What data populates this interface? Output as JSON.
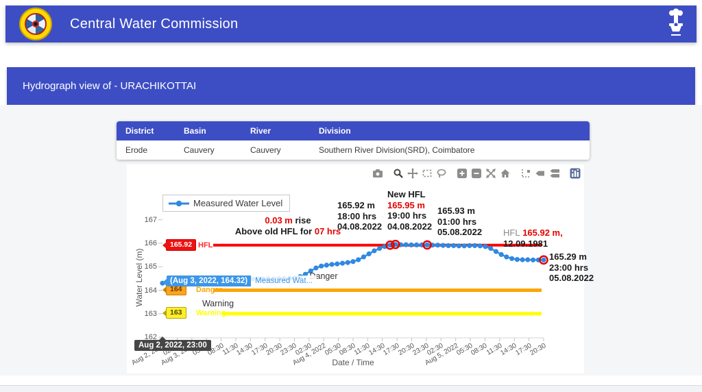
{
  "header": {
    "title": "Central Water Commission"
  },
  "page": {
    "title": "Hydrograph view of - URACHIKOTTAI"
  },
  "station_table": {
    "headers": [
      "District",
      "Basin",
      "River",
      "Division"
    ],
    "rows": [
      [
        "Erode",
        "Cauvery",
        "Cauvery",
        "Southern River Division(SRD), Coimbatore"
      ]
    ]
  },
  "modebar_icons": [
    "download-plot",
    "zoom",
    "pan",
    "box-select",
    "lasso-select",
    "zoom-in",
    "zoom-out",
    "autoscale",
    "reset-axes",
    "toggle-spike-lines",
    "show-closest-on-hover",
    "compare-data-on-hover",
    "plotly-logo"
  ],
  "chart_data": {
    "type": "line",
    "title": "",
    "xlabel": "Date / Time",
    "ylabel": "Water Level (m)",
    "ylim": [
      162,
      167
    ],
    "grid": false,
    "legend_position": "top-left",
    "legend": [
      "Measured Water Level"
    ],
    "yticks": [
      167,
      166,
      165,
      164,
      163,
      162
    ],
    "xticks": [
      "Aug 2, 2022",
      "02:30",
      "Aug 3, 2022",
      "05:30",
      "08:30",
      "11:30",
      "14:30",
      "17:30",
      "20:30",
      "23:30",
      "02:30",
      "Aug 4, 2022",
      "05:30",
      "08:30",
      "11:30",
      "14:30",
      "17:30",
      "20:30",
      "23:30",
      "02:30",
      "Aug 5, 2022",
      "05:30",
      "08:30",
      "11:30",
      "14:30",
      "17:30",
      "20:30"
    ],
    "x_start": "Aug 2, 2022 23:00",
    "x_end": "Aug 5, 2022 23:00",
    "x_step_hours": 1,
    "series": [
      {
        "name": "Measured Water Level",
        "color": "#2f89e0",
        "values": [
          164.3,
          164.32,
          164.34,
          164.35,
          164.37,
          164.38,
          164.4,
          164.41,
          164.42,
          164.43,
          164.44,
          164.45,
          164.45,
          164.46,
          164.46,
          164.47,
          164.47,
          164.48,
          164.48,
          164.48,
          164.49,
          164.49,
          164.5,
          164.5,
          164.5,
          164.52,
          164.58,
          164.68,
          164.82,
          164.95,
          165.03,
          165.07,
          165.1,
          165.12,
          165.15,
          165.18,
          165.22,
          165.3,
          165.42,
          165.55,
          165.68,
          165.78,
          165.86,
          165.92,
          165.95,
          165.94,
          165.94,
          165.93,
          165.93,
          165.93,
          165.93,
          165.92,
          165.92,
          165.91,
          165.9,
          165.9,
          165.89,
          165.89,
          165.9,
          165.9,
          165.89,
          165.86,
          165.78,
          165.65,
          165.52,
          165.42,
          165.35,
          165.31,
          165.3,
          165.3,
          165.29,
          165.29,
          165.29
        ],
        "highlighted_points": [
          43,
          44,
          50,
          72
        ],
        "highlight_color": "#e30000"
      }
    ],
    "reference_lines": [
      {
        "id": "hfl",
        "value": 165.92,
        "badge": "165.92",
        "text": "HFL",
        "line_color": "#ff0000",
        "line_width": 4,
        "line_start": 126
      },
      {
        "id": "danger",
        "value": 164,
        "badge": "164",
        "text": "Danger",
        "line_color": "#ffa500",
        "line_width": 5,
        "line_start": 126
      },
      {
        "id": "warning",
        "value": 163,
        "badge": "163",
        "text": "Warning",
        "line_color": "#ffff00",
        "line_width": 5,
        "line_start": 140
      }
    ],
    "annotations": {
      "rise": {
        "value": "0.03 m",
        "text": " rise",
        "line2": "Above old HFL for ",
        "line2_value": "07 hrs"
      },
      "peak_18h": {
        "lines": [
          "165.92 m",
          "18:00 hrs",
          "04.08.2022"
        ]
      },
      "new_hfl": {
        "title": "New HFL",
        "value": "165.95 m",
        "time": "19:00 hrs",
        "date": "04.08.2022"
      },
      "peak_01h": {
        "lines": [
          "165.93 m",
          "01:00 hrs",
          "05.08.2022"
        ]
      },
      "hfl_record": {
        "prefix": "HFL",
        "value": "165.92 m,",
        "date": "12.09.1981"
      },
      "last_point": {
        "lines": [
          "165.29 m",
          "23:00 hrs",
          "05.08.2022"
        ]
      },
      "danger_word": "Danger",
      "warning_word": "Warning"
    },
    "tooltips": {
      "point_value": "(Aug 3, 2022, 164.32)",
      "trace_name": "Measured Wat...",
      "axis_value": "Aug 2, 2022, 23:00"
    }
  }
}
